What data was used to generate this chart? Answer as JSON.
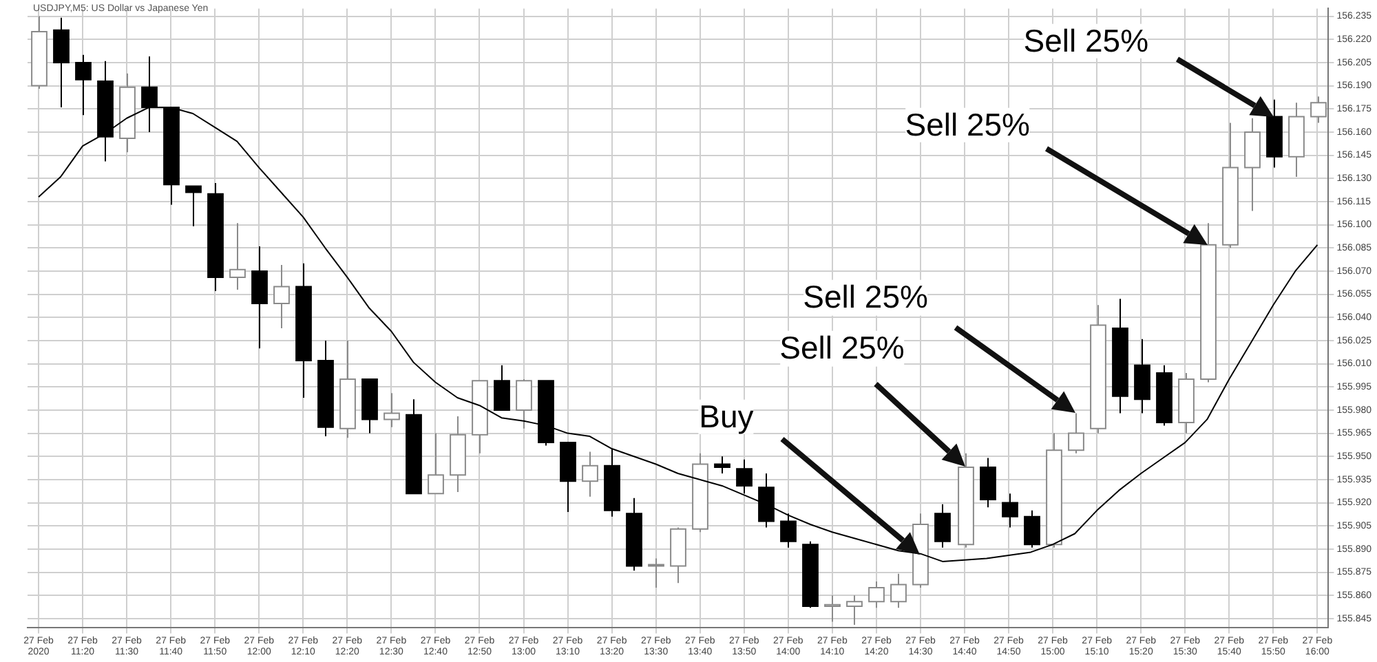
{
  "chart_data": {
    "type": "candlestick",
    "title": "USDJPY,M5: US Dollar vs Japanese Yen",
    "categories": [
      "27 Feb 2020",
      null,
      "27 Feb 11:20",
      null,
      "27 Feb 11:30",
      null,
      "27 Feb 11:40",
      null,
      "27 Feb 11:50",
      null,
      "27 Feb 12:00",
      null,
      "27 Feb 12:10",
      null,
      "27 Feb 12:20",
      null,
      "27 Feb 12:30",
      null,
      "27 Feb 12:40",
      null,
      "27 Feb 12:50",
      null,
      "27 Feb 13:00",
      null,
      "27 Feb 13:10",
      null,
      "27 Feb 13:20",
      null,
      "27 Feb 13:30",
      null,
      "27 Feb 13:40",
      null,
      "27 Feb 13:50",
      null,
      "27 Feb 14:00",
      null,
      "27 Feb 14:10",
      null,
      "27 Feb 14:20",
      null,
      "27 Feb 14:30",
      null,
      "27 Feb 14:40",
      null,
      "27 Feb 14:50",
      null,
      "27 Feb 15:00",
      null,
      "27 Feb 15:10",
      null,
      "27 Feb 15:20",
      null,
      "27 Feb 15:30",
      null,
      "27 Feb 15:40",
      null,
      "27 Feb 15:50",
      null,
      "27 Feb 16:00"
    ],
    "ohlc": [
      [
        156.19,
        156.235,
        156.188,
        156.225
      ],
      [
        156.226,
        156.234,
        156.176,
        156.205
      ],
      [
        156.205,
        156.21,
        156.171,
        156.194
      ],
      [
        156.193,
        156.206,
        156.141,
        156.157
      ],
      [
        156.156,
        156.198,
        156.147,
        156.189
      ],
      [
        156.189,
        156.209,
        156.16,
        156.176
      ],
      [
        156.176,
        156.176,
        156.113,
        156.126
      ],
      [
        156.125,
        156.125,
        156.099,
        156.121
      ],
      [
        156.12,
        156.127,
        156.057,
        156.066
      ],
      [
        156.066,
        156.101,
        156.058,
        156.071
      ],
      [
        156.07,
        156.086,
        156.02,
        156.049
      ],
      [
        156.049,
        156.074,
        156.033,
        156.06
      ],
      [
        156.06,
        156.075,
        155.988,
        156.012
      ],
      [
        156.012,
        156.025,
        155.963,
        155.969
      ],
      [
        155.968,
        156.025,
        155.962,
        156.0
      ],
      [
        156.0,
        156.0,
        155.965,
        155.974
      ],
      [
        155.974,
        155.991,
        155.969,
        155.978
      ],
      [
        155.977,
        155.987,
        155.926,
        155.926
      ],
      [
        155.926,
        155.965,
        155.926,
        155.938
      ],
      [
        155.938,
        155.976,
        155.927,
        155.964
      ],
      [
        155.964,
        155.999,
        155.952,
        155.999
      ],
      [
        155.999,
        156.009,
        155.98,
        155.98
      ],
      [
        155.98,
        156.0,
        155.968,
        155.999
      ],
      [
        155.999,
        155.999,
        155.957,
        155.959
      ],
      [
        155.959,
        155.959,
        155.914,
        155.934
      ],
      [
        155.934,
        155.953,
        155.924,
        155.944
      ],
      [
        155.944,
        155.955,
        155.911,
        155.915
      ],
      [
        155.913,
        155.923,
        155.876,
        155.879
      ],
      [
        155.879,
        155.884,
        155.865,
        155.88
      ],
      [
        155.879,
        155.904,
        155.868,
        155.903
      ],
      [
        155.903,
        155.952,
        155.901,
        155.945
      ],
      [
        155.945,
        155.95,
        155.939,
        155.943
      ],
      [
        155.942,
        155.948,
        155.926,
        155.931
      ],
      [
        155.93,
        155.939,
        155.904,
        155.908
      ],
      [
        155.908,
        155.913,
        155.891,
        155.895
      ],
      [
        155.893,
        155.895,
        155.852,
        155.853
      ],
      [
        155.853,
        155.86,
        155.843,
        155.854
      ],
      [
        155.853,
        155.86,
        155.841,
        155.856
      ],
      [
        155.856,
        155.869,
        155.852,
        155.865
      ],
      [
        155.856,
        155.874,
        155.852,
        155.867
      ],
      [
        155.867,
        155.913,
        155.865,
        155.906
      ],
      [
        155.913,
        155.919,
        155.891,
        155.895
      ],
      [
        155.893,
        155.952,
        155.891,
        155.943
      ],
      [
        155.943,
        155.949,
        155.917,
        155.922
      ],
      [
        155.92,
        155.926,
        155.904,
        155.911
      ],
      [
        155.911,
        155.915,
        155.891,
        155.893
      ],
      [
        155.893,
        155.965,
        155.891,
        155.954
      ],
      [
        155.954,
        155.978,
        155.952,
        155.965
      ],
      [
        155.968,
        156.048,
        155.965,
        156.035
      ],
      [
        156.033,
        156.052,
        155.978,
        155.989
      ],
      [
        156.009,
        156.026,
        155.978,
        155.987
      ],
      [
        156.004,
        156.009,
        155.97,
        155.972
      ],
      [
        155.972,
        156.004,
        155.965,
        156.0
      ],
      [
        156.0,
        156.101,
        155.998,
        156.087
      ],
      [
        156.087,
        156.166,
        156.085,
        156.137
      ],
      [
        156.137,
        156.169,
        156.109,
        156.16
      ],
      [
        156.17,
        156.181,
        156.137,
        156.144
      ],
      [
        156.144,
        156.179,
        156.131,
        156.17
      ],
      [
        156.17,
        156.183,
        156.166,
        156.179
      ]
    ],
    "colors": [
      "#ffffff",
      "#000000",
      "#000000",
      "#000000",
      "#ffffff",
      "#000000",
      "#000000",
      "#000000",
      "#000000",
      "#ffffff",
      "#000000",
      "#ffffff",
      "#000000",
      "#000000",
      "#ffffff",
      "#000000",
      "#ffffff",
      "#000000",
      "#ffffff",
      "#ffffff",
      "#ffffff",
      "#000000",
      "#ffffff",
      "#000000",
      "#000000",
      "#ffffff",
      "#000000",
      "#000000",
      "#ffffff",
      "#ffffff",
      "#ffffff",
      "#000000",
      "#000000",
      "#000000",
      "#000000",
      "#000000",
      "#ffffff",
      "#ffffff",
      "#ffffff",
      "#ffffff",
      "#ffffff",
      "#000000",
      "#ffffff",
      "#000000",
      "#000000",
      "#000000",
      "#ffffff",
      "#ffffff",
      "#ffffff",
      "#000000",
      "#000000",
      "#000000",
      "#ffffff",
      "#ffffff",
      "#ffffff",
      "#ffffff",
      "#000000",
      "#ffffff",
      "#ffffff"
    ],
    "series": [
      {
        "type": "line",
        "color": "#000000",
        "values": [
          156.118,
          156.131,
          156.151,
          156.159,
          156.169,
          156.176,
          156.176,
          156.172,
          156.163,
          156.154,
          156.137,
          156.121,
          156.105,
          156.085,
          156.066,
          156.046,
          156.031,
          156.011,
          155.998,
          155.988,
          155.983,
          155.975,
          155.973,
          155.97,
          155.965,
          155.963,
          155.955,
          155.95,
          155.945,
          155.939,
          155.935,
          155.931,
          155.925,
          155.919,
          155.912,
          155.906,
          155.901,
          155.897,
          155.893,
          155.889,
          155.887,
          155.882,
          155.883,
          155.884,
          155.886,
          155.888,
          155.893,
          155.9,
          155.915,
          155.928,
          155.939,
          155.949,
          155.959,
          155.974,
          156.0,
          156.024,
          156.048,
          156.07,
          156.087
        ]
      }
    ],
    "ylim": [
      155.839,
      156.24
    ],
    "yticks": [
      {
        "value": 156.235,
        "label": "156.235"
      },
      {
        "value": 156.22,
        "label": "156.220"
      },
      {
        "value": 156.205,
        "label": "156.205"
      },
      {
        "value": 156.19,
        "label": "156.190"
      },
      {
        "value": 156.175,
        "label": "156.175"
      },
      {
        "value": 156.16,
        "label": "156.160"
      },
      {
        "value": 156.145,
        "label": "156.145"
      },
      {
        "value": 156.13,
        "label": "156.130"
      },
      {
        "value": 156.115,
        "label": "156.115"
      },
      {
        "value": 156.1,
        "label": "156.100"
      },
      {
        "value": 156.085,
        "label": "156.085"
      },
      {
        "value": 156.07,
        "label": "156.070"
      },
      {
        "value": 156.055,
        "label": "156.055"
      },
      {
        "value": 156.04,
        "label": "156.040"
      },
      {
        "value": 156.025,
        "label": "156.025"
      },
      {
        "value": 156.01,
        "label": "156.010"
      },
      {
        "value": 155.995,
        "label": "155.995"
      },
      {
        "value": 155.98,
        "label": "155.980"
      },
      {
        "value": 155.965,
        "label": "155.965"
      },
      {
        "value": 155.95,
        "label": "155.950"
      },
      {
        "value": 155.935,
        "label": "155.935"
      },
      {
        "value": 155.92,
        "label": "155.920"
      },
      {
        "value": 155.905,
        "label": "155.905"
      },
      {
        "value": 155.89,
        "label": "155.890"
      },
      {
        "value": 155.875,
        "label": "155.875"
      },
      {
        "value": 155.86,
        "label": "155.860"
      },
      {
        "value": 155.845,
        "label": "155.845"
      }
    ],
    "grid": true,
    "annotations": [
      "Buy",
      "Sell 25%",
      "Sell 25%",
      "Sell 25%",
      "Sell 25%"
    ]
  }
}
